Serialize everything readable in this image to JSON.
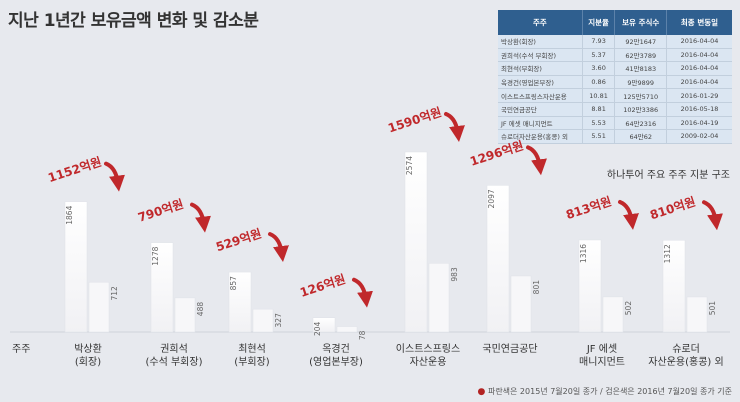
{
  "chart_data": {
    "type": "bar",
    "title": "지난 1년간 보유금액 변화 및 감소분",
    "x_axis_label": "주주",
    "categories": [
      [
        "박상환",
        "(회장)"
      ],
      [
        "권희석",
        "(수석 부회장)"
      ],
      [
        "최현석",
        "(부회장)"
      ],
      [
        "옥경건",
        "(영업본부장)"
      ],
      [
        "이스트스프링스",
        "자산운용"
      ],
      [
        "국민연금공단"
      ],
      [
        "JF 에셋",
        "매니지먼트"
      ],
      [
        "슈로더",
        "자산운용(홍콩) 외"
      ]
    ],
    "series": [
      {
        "values": [
          1864,
          1278,
          857,
          204,
          2574,
          2097,
          1316,
          1312
        ]
      },
      {
        "values": [
          712,
          488,
          327,
          78,
          983,
          801,
          502,
          501
        ]
      }
    ],
    "decrease_labels": [
      "1152억원",
      "790억원",
      "529억원",
      "126억원",
      "1590억원",
      "1296억원",
      "813억원",
      "810억원"
    ],
    "footnote_marker": "●",
    "footnote": "파란색은 2015년 7월20일 종가 / 검은색은 2016년 7월20일 종가 기준"
  },
  "table": {
    "caption": "하나투어 주요 주주 지분 구조",
    "headers": [
      "주주",
      "지분율",
      "보유 주식수",
      "최종 변동일"
    ],
    "rows": [
      [
        "박상환(회장)",
        "7.93",
        "92만1647",
        "2016-04-04"
      ],
      [
        "권희석(수석 부회장)",
        "5.37",
        "62만3789",
        "2016-04-04"
      ],
      [
        "최현석(부회장)",
        "3.60",
        "41만8183",
        "2016-04-04"
      ],
      [
        "옥경건(영업본부장)",
        "0.86",
        "9만9899",
        "2016-04-04"
      ],
      [
        "이스트스프링스자산운용",
        "10.81",
        "125만5710",
        "2016-01-29"
      ],
      [
        "국민연금공단",
        "8.81",
        "102만3386",
        "2016-05-18"
      ],
      [
        "JF 에셋 매니지먼트",
        "5.53",
        "64만2316",
        "2016-04-19"
      ],
      [
        "슈로더자산운용(홍콩) 외",
        "5.51",
        "64만62",
        "2009-02-04"
      ]
    ]
  },
  "colors": {
    "background": "#e7e9ee",
    "bar_previous": "#ffffff",
    "bar_current": "#f7f7f7",
    "decrease": "#c0282b",
    "table_header": "#2f5f8f"
  }
}
